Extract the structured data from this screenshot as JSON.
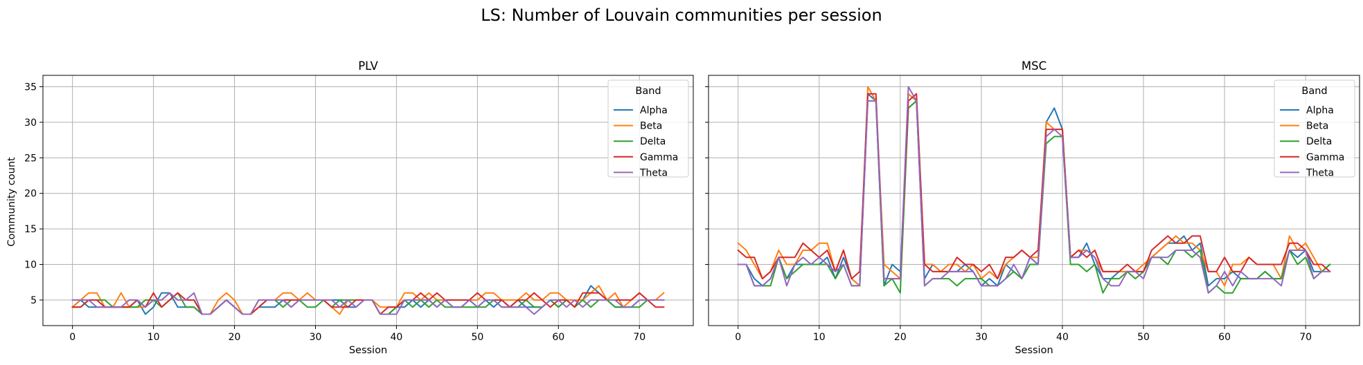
{
  "suptitle": "LS: Number of Louvain communities per session",
  "ylabel": "Community count",
  "legend_title": "Band",
  "colors": {
    "Alpha": "#1f77b4",
    "Beta": "#ff7f0e",
    "Delta": "#2ca02c",
    "Gamma": "#d62728",
    "Theta": "#9467bd"
  },
  "chart_data": [
    {
      "type": "line",
      "title": "PLV",
      "xlabel": "Session",
      "ylabel": "Community count",
      "xlim": [
        -3.65,
        76.65
      ],
      "ylim": [
        1.4,
        36.6
      ],
      "xticks": [
        0,
        10,
        20,
        30,
        40,
        50,
        60,
        70
      ],
      "yticks": [
        5,
        10,
        15,
        20,
        25,
        30,
        35
      ],
      "grid": true,
      "legend": "top-right",
      "x": [
        0,
        1,
        2,
        3,
        4,
        5,
        6,
        7,
        8,
        9,
        10,
        11,
        12,
        13,
        14,
        15,
        16,
        17,
        18,
        19,
        20,
        21,
        22,
        23,
        24,
        25,
        26,
        27,
        28,
        29,
        30,
        31,
        32,
        33,
        34,
        35,
        36,
        37,
        38,
        39,
        40,
        41,
        42,
        43,
        44,
        45,
        46,
        47,
        48,
        49,
        50,
        51,
        52,
        53,
        54,
        55,
        56,
        57,
        58,
        59,
        60,
        61,
        62,
        63,
        64,
        65,
        66,
        67,
        68,
        69,
        70,
        71,
        72,
        73
      ],
      "series": [
        {
          "name": "Alpha",
          "values": [
            4,
            5,
            4,
            4,
            4,
            4,
            4,
            4,
            5,
            3,
            4,
            6,
            6,
            4,
            4,
            4,
            3,
            3,
            4,
            5,
            4,
            3,
            3,
            4,
            4,
            4,
            5,
            4,
            5,
            5,
            5,
            5,
            5,
            5,
            4,
            4,
            5,
            5,
            3,
            3,
            4,
            4,
            5,
            4,
            5,
            4,
            5,
            4,
            4,
            5,
            4,
            5,
            4,
            5,
            4,
            5,
            4,
            4,
            4,
            5,
            4,
            5,
            5,
            5,
            7,
            6,
            5,
            4,
            4,
            4,
            5,
            5,
            5,
            5
          ]
        },
        {
          "name": "Beta",
          "values": [
            4,
            5,
            6,
            6,
            4,
            4,
            6,
            4,
            4,
            4,
            5,
            5,
            6,
            5,
            5,
            5,
            3,
            3,
            5,
            6,
            5,
            3,
            3,
            5,
            5,
            5,
            6,
            6,
            5,
            6,
            5,
            5,
            4,
            3,
            5,
            5,
            5,
            5,
            4,
            4,
            4,
            6,
            6,
            5,
            6,
            5,
            5,
            5,
            5,
            5,
            5,
            6,
            6,
            5,
            5,
            5,
            6,
            5,
            5,
            6,
            6,
            5,
            5,
            5,
            6,
            7,
            5,
            6,
            4,
            5,
            6,
            5,
            5,
            6
          ]
        },
        {
          "name": "Delta",
          "values": [
            4,
            4,
            5,
            5,
            5,
            4,
            4,
            4,
            4,
            5,
            5,
            4,
            5,
            6,
            4,
            4,
            3,
            3,
            4,
            5,
            4,
            3,
            3,
            4,
            5,
            5,
            4,
            5,
            5,
            4,
            4,
            5,
            4,
            5,
            5,
            5,
            5,
            5,
            3,
            3,
            4,
            5,
            4,
            5,
            4,
            5,
            4,
            4,
            4,
            4,
            4,
            4,
            5,
            4,
            4,
            4,
            5,
            4,
            4,
            5,
            4,
            5,
            4,
            5,
            4,
            5,
            5,
            4,
            4,
            4,
            4,
            5,
            5,
            5
          ]
        },
        {
          "name": "Gamma",
          "values": [
            4,
            4,
            5,
            5,
            4,
            4,
            4,
            4,
            5,
            4,
            6,
            4,
            5,
            6,
            5,
            5,
            3,
            3,
            4,
            5,
            4,
            3,
            3,
            4,
            5,
            5,
            5,
            5,
            5,
            5,
            5,
            5,
            4,
            4,
            4,
            5,
            5,
            5,
            3,
            4,
            4,
            5,
            5,
            6,
            5,
            6,
            5,
            5,
            5,
            5,
            6,
            5,
            5,
            5,
            4,
            5,
            5,
            6,
            5,
            4,
            5,
            5,
            4,
            6,
            6,
            6,
            5,
            5,
            5,
            5,
            6,
            5,
            4,
            4
          ]
        },
        {
          "name": "Theta",
          "values": [
            5,
            5,
            5,
            4,
            4,
            4,
            4,
            5,
            5,
            4,
            5,
            5,
            6,
            5,
            5,
            6,
            3,
            3,
            4,
            5,
            4,
            3,
            3,
            5,
            5,
            5,
            5,
            4,
            5,
            5,
            5,
            5,
            5,
            4,
            5,
            4,
            5,
            5,
            3,
            3,
            3,
            5,
            5,
            5,
            5,
            4,
            5,
            4,
            4,
            5,
            4,
            5,
            5,
            4,
            4,
            4,
            4,
            3,
            4,
            5,
            5,
            4,
            5,
            4,
            5,
            5,
            5,
            5,
            4,
            4,
            5,
            5,
            5,
            5
          ]
        }
      ]
    },
    {
      "type": "line",
      "title": "MSC",
      "xlabel": "Session",
      "ylabel": "",
      "xlim": [
        -3.65,
        76.65
      ],
      "ylim": [
        1.4,
        36.6
      ],
      "xticks": [
        0,
        10,
        20,
        30,
        40,
        50,
        60,
        70
      ],
      "yticks": [
        5,
        10,
        15,
        20,
        25,
        30,
        35
      ],
      "grid": true,
      "legend": "top-right",
      "x": [
        0,
        1,
        2,
        3,
        4,
        5,
        6,
        7,
        8,
        9,
        10,
        11,
        12,
        13,
        14,
        15,
        16,
        17,
        18,
        19,
        20,
        21,
        22,
        23,
        24,
        25,
        26,
        27,
        28,
        29,
        30,
        31,
        32,
        33,
        34,
        35,
        36,
        37,
        38,
        39,
        40,
        41,
        42,
        43,
        44,
        45,
        46,
        47,
        48,
        49,
        50,
        51,
        52,
        53,
        54,
        55,
        56,
        57,
        58,
        59,
        60,
        61,
        62,
        63,
        64,
        65,
        66,
        67,
        68,
        69,
        70,
        71,
        72,
        73
      ],
      "series": [
        {
          "name": "Alpha",
          "values": [
            10,
            10,
            8,
            7,
            8,
            11,
            8,
            10,
            10,
            10,
            10,
            11,
            8,
            11,
            8,
            7,
            34,
            33,
            7,
            10,
            9,
            32,
            33,
            8,
            10,
            9,
            9,
            9,
            10,
            9,
            7,
            8,
            7,
            10,
            9,
            8,
            11,
            10,
            30,
            32,
            29,
            11,
            11,
            13,
            10,
            8,
            8,
            9,
            9,
            9,
            9,
            11,
            12,
            13,
            13,
            14,
            12,
            13,
            7,
            8,
            8,
            9,
            8,
            8,
            8,
            9,
            8,
            8,
            12,
            11,
            12,
            9,
            9,
            10
          ]
        },
        {
          "name": "Beta",
          "values": [
            13,
            12,
            10,
            8,
            9,
            12,
            10,
            10,
            12,
            12,
            13,
            13,
            9,
            12,
            8,
            7,
            35,
            33,
            10,
            9,
            8,
            34,
            33,
            10,
            10,
            9,
            10,
            10,
            9,
            10,
            8,
            9,
            8,
            10,
            11,
            12,
            11,
            11,
            30,
            29,
            29,
            11,
            12,
            12,
            11,
            9,
            9,
            9,
            9,
            9,
            10,
            11,
            12,
            13,
            14,
            13,
            13,
            12,
            9,
            9,
            7,
            10,
            10,
            11,
            10,
            10,
            10,
            8,
            14,
            12,
            13,
            11,
            9,
            10
          ]
        },
        {
          "name": "Delta",
          "values": [
            10,
            10,
            7,
            7,
            7,
            11,
            8,
            9,
            10,
            10,
            10,
            10,
            8,
            10,
            7,
            7,
            33,
            33,
            7,
            8,
            6,
            32,
            33,
            7,
            8,
            8,
            8,
            7,
            8,
            8,
            8,
            7,
            7,
            8,
            9,
            8,
            10,
            10,
            27,
            28,
            28,
            10,
            10,
            9,
            10,
            6,
            8,
            8,
            9,
            8,
            9,
            11,
            11,
            10,
            12,
            12,
            11,
            12,
            6,
            7,
            6,
            6,
            8,
            8,
            8,
            9,
            8,
            8,
            12,
            10,
            11,
            8,
            9,
            10
          ]
        },
        {
          "name": "Gamma",
          "values": [
            12,
            11,
            11,
            8,
            9,
            11,
            11,
            11,
            13,
            12,
            11,
            12,
            9,
            12,
            8,
            9,
            34,
            34,
            8,
            8,
            8,
            33,
            34,
            10,
            9,
            9,
            9,
            11,
            10,
            10,
            9,
            10,
            8,
            11,
            11,
            12,
            11,
            12,
            29,
            29,
            29,
            11,
            12,
            11,
            12,
            9,
            9,
            9,
            10,
            9,
            9,
            12,
            13,
            14,
            13,
            13,
            14,
            14,
            9,
            9,
            11,
            9,
            9,
            11,
            10,
            10,
            10,
            10,
            13,
            13,
            12,
            10,
            10,
            9
          ]
        },
        {
          "name": "Theta",
          "values": [
            10,
            10,
            7,
            7,
            8,
            11,
            7,
            10,
            11,
            10,
            11,
            10,
            9,
            10,
            7,
            7,
            33,
            33,
            8,
            8,
            8,
            35,
            33,
            7,
            8,
            8,
            9,
            9,
            9,
            9,
            7,
            7,
            7,
            8,
            10,
            8,
            11,
            10,
            28,
            29,
            28,
            11,
            11,
            12,
            11,
            8,
            7,
            7,
            9,
            9,
            8,
            11,
            11,
            11,
            12,
            12,
            12,
            11,
            6,
            7,
            9,
            7,
            9,
            8,
            8,
            8,
            8,
            7,
            12,
            12,
            12,
            8,
            9,
            9
          ]
        }
      ]
    }
  ]
}
